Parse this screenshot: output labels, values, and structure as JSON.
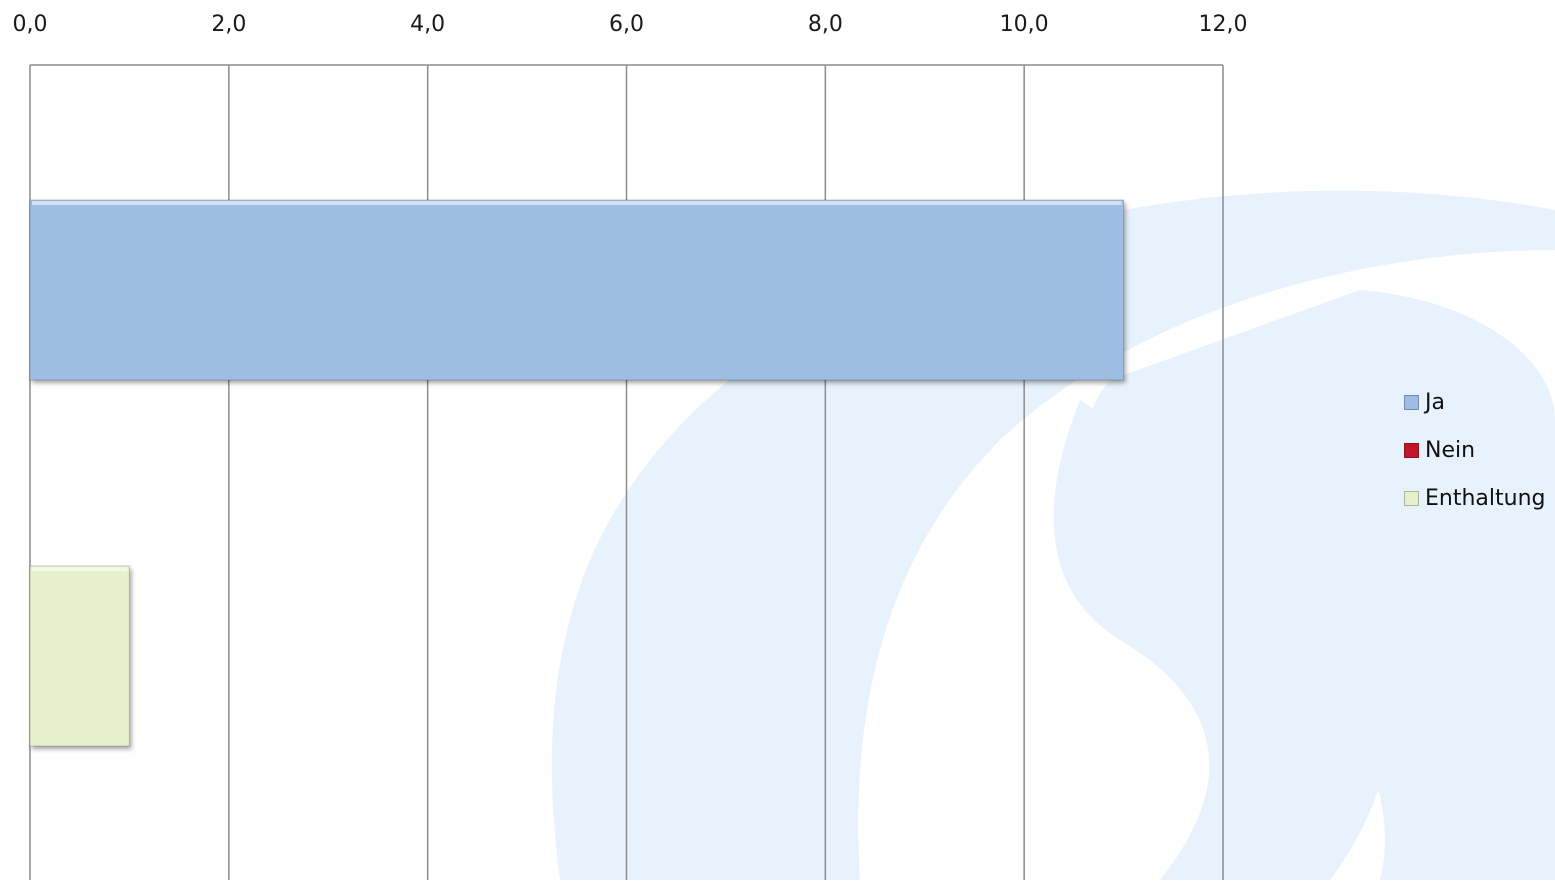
{
  "chart_data": {
    "type": "bar",
    "orientation": "horizontal",
    "axis_position": "top",
    "xlim": [
      0,
      12
    ],
    "x_ticks": [
      "0,0",
      "2,0",
      "4,0",
      "6,0",
      "8,0",
      "10,0",
      "12,0"
    ],
    "x_tick_values": [
      0,
      2,
      4,
      6,
      8,
      10,
      12
    ],
    "grid": true,
    "series": [
      {
        "name": "Ja",
        "value": 11,
        "color": "#9dbde3"
      },
      {
        "name": "Nein",
        "value": 0,
        "color": "#c0162a"
      },
      {
        "name": "Enthaltung",
        "value": 1,
        "color": "#e6f0cd"
      }
    ],
    "legend": {
      "placement": "right",
      "items": [
        {
          "label": "Ja",
          "color": "#9dbde3"
        },
        {
          "label": "Nein",
          "color": "#c0162a"
        },
        {
          "label": "Enthaltung",
          "color": "#e6f0cd"
        }
      ]
    }
  },
  "colors": {
    "watermark": "#e7f2fc",
    "grid": "#8c8c8c"
  }
}
